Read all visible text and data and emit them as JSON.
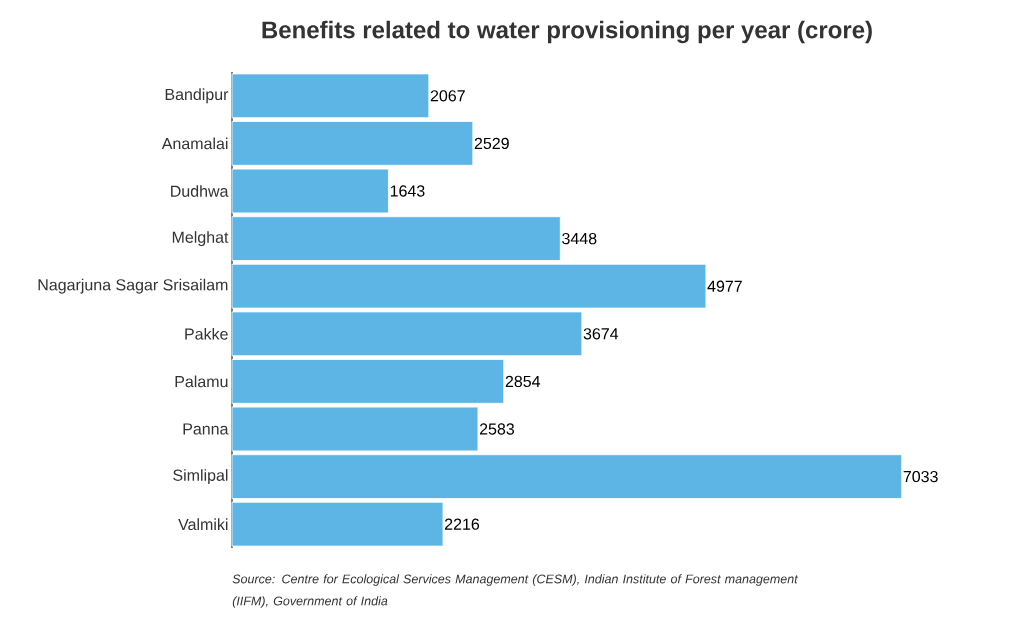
{
  "chart_data": {
    "type": "bar",
    "orientation": "horizontal",
    "title": "Benefits related to water provisioning per year (crore)",
    "categories": [
      "Bandipur",
      "Anamalai",
      "Dudhwa",
      "Melghat",
      "Nagarjuna Sagar Srisailam",
      "Pakke",
      "Palamu",
      "Panna",
      "Simlipal",
      "Valmiki"
    ],
    "values": [
      2067,
      2529,
      1643,
      3448,
      4977,
      3674,
      2854,
      2583,
      7033,
      2216
    ],
    "color": "#5db5e6",
    "data_labels": true,
    "annotations": [
      "Source: Centre for Ecological Services Management (CESM), Indian Institute of Forest management (IIFM), Government of India"
    ]
  }
}
